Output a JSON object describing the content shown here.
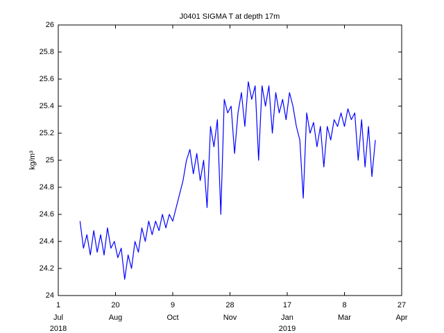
{
  "chart_data": {
    "type": "line",
    "title": "J0401 SIGMA T at depth 17m",
    "y_label": "kg/m³",
    "color": "#0000ff",
    "x": [
      "2018-07-20",
      "2018-07-23",
      "2018-07-26",
      "2018-07-29",
      "2018-08-01",
      "2018-08-04",
      "2018-08-07",
      "2018-08-10",
      "2018-08-13",
      "2018-08-16",
      "2018-08-19",
      "2018-08-22",
      "2018-08-25",
      "2018-08-28",
      "2018-08-31",
      "2018-09-03",
      "2018-09-06",
      "2018-09-09",
      "2018-09-12",
      "2018-09-15",
      "2018-09-18",
      "2018-09-21",
      "2018-09-24",
      "2018-09-27",
      "2018-09-30",
      "2018-10-03",
      "2018-10-06",
      "2018-10-09",
      "2018-10-12",
      "2018-10-15",
      "2018-10-18",
      "2018-10-21",
      "2018-10-24",
      "2018-10-27",
      "2018-10-30",
      "2018-11-02",
      "2018-11-05",
      "2018-11-08",
      "2018-11-11",
      "2018-11-14",
      "2018-11-17",
      "2018-11-20",
      "2018-11-23",
      "2018-11-26",
      "2018-11-29",
      "2018-12-02",
      "2018-12-05",
      "2018-12-08",
      "2018-12-11",
      "2018-12-14",
      "2018-12-17",
      "2018-12-20",
      "2018-12-23",
      "2018-12-26",
      "2018-12-29",
      "2019-01-01",
      "2019-01-04",
      "2019-01-07",
      "2019-01-10",
      "2019-01-13",
      "2019-01-16",
      "2019-01-19",
      "2019-01-22",
      "2019-01-25",
      "2019-01-28",
      "2019-01-31",
      "2019-02-03",
      "2019-02-06",
      "2019-02-09",
      "2019-02-12",
      "2019-02-15",
      "2019-02-18",
      "2019-02-21",
      "2019-02-24",
      "2019-02-27",
      "2019-03-02",
      "2019-03-05",
      "2019-03-08",
      "2019-03-11",
      "2019-03-14",
      "2019-03-17",
      "2019-03-20",
      "2019-03-23",
      "2019-03-26",
      "2019-03-29",
      "2019-04-01",
      "2019-04-04"
    ],
    "values": [
      24.55,
      24.35,
      24.45,
      24.3,
      24.48,
      24.32,
      24.45,
      24.3,
      24.5,
      24.35,
      24.4,
      24.28,
      24.35,
      24.12,
      24.3,
      24.2,
      24.4,
      24.32,
      24.5,
      24.4,
      24.55,
      24.45,
      24.55,
      24.48,
      24.6,
      24.5,
      24.6,
      24.55,
      24.65,
      24.75,
      24.85,
      25.0,
      25.08,
      24.9,
      25.05,
      24.85,
      25.0,
      24.65,
      25.25,
      25.1,
      25.3,
      24.6,
      25.45,
      25.35,
      25.4,
      25.05,
      25.35,
      25.5,
      25.25,
      25.58,
      25.45,
      25.55,
      25.0,
      25.55,
      25.4,
      25.55,
      25.2,
      25.5,
      25.35,
      25.45,
      25.3,
      25.5,
      25.4,
      25.25,
      25.15,
      24.72,
      25.35,
      25.2,
      25.28,
      25.1,
      25.25,
      24.95,
      25.25,
      25.15,
      25.3,
      25.25,
      25.35,
      25.25,
      25.38,
      25.3,
      25.35,
      25.0,
      25.3,
      24.95,
      25.25,
      24.88,
      25.15
    ],
    "xlim": [
      "2018-07-01",
      "2019-04-27"
    ],
    "xticks": [
      {
        "value": "2018-07-01",
        "label": "1"
      },
      {
        "value": "2018-08-20",
        "label": "20"
      },
      {
        "value": "2018-10-09",
        "label": "9"
      },
      {
        "value": "2018-11-28",
        "label": "28"
      },
      {
        "value": "2019-01-17",
        "label": "17"
      },
      {
        "value": "2019-03-08",
        "label": "8"
      },
      {
        "value": "2019-04-27",
        "label": "27"
      }
    ],
    "xtick_months": [
      "Jul",
      "Aug",
      "Oct",
      "Nov",
      "Jan",
      "Mar",
      "Apr"
    ],
    "year_labels": [
      {
        "value": "2018-07-01",
        "label": "2018"
      },
      {
        "value": "2019-01-17",
        "label": "2019"
      }
    ],
    "ylim": [
      24,
      26
    ],
    "yticks": [
      24,
      24.2,
      24.4,
      24.6,
      24.8,
      25,
      25.2,
      25.4,
      25.6,
      25.8,
      26
    ],
    "grid": false
  }
}
